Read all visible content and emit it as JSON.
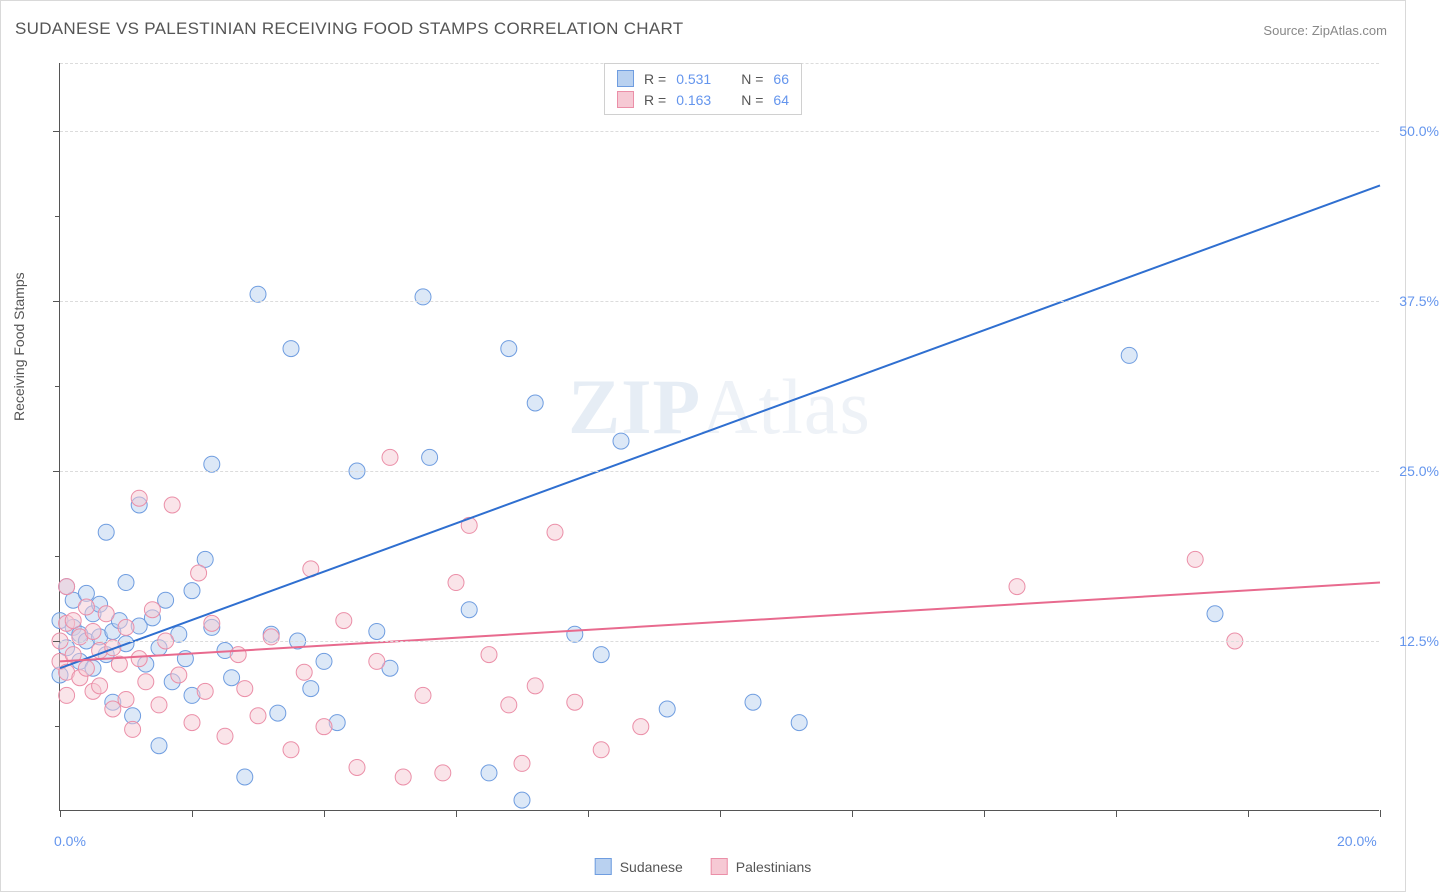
{
  "title": "SUDANESE VS PALESTINIAN RECEIVING FOOD STAMPS CORRELATION CHART",
  "source_label": "Source:",
  "source_value": "ZipAtlas.com",
  "ylabel": "Receiving Food Stamps",
  "watermark_zip": "ZIP",
  "watermark_atlas": "Atlas",
  "chart": {
    "type": "scatter",
    "background_color": "#ffffff",
    "grid_color": "#dcdcdc",
    "axis_color": "#555555",
    "tick_label_color": "#6495ed",
    "label_fontsize": 14,
    "title_fontsize": 17,
    "xlim": [
      0,
      20
    ],
    "ylim": [
      0,
      55
    ],
    "ytick_values": [
      12.5,
      25.0,
      37.5,
      50.0
    ],
    "ytick_labels": [
      "12.5%",
      "25.0%",
      "37.5%",
      "50.0%"
    ],
    "ytick_minor": [
      6.25,
      18.75,
      31.25,
      43.75
    ],
    "xtick_values": [
      0,
      2,
      4,
      6,
      8,
      10,
      12,
      14,
      16,
      18,
      20
    ],
    "xaxis_start_label": "0.0%",
    "xaxis_end_label": "20.0%",
    "marker_radius": 8,
    "marker_opacity": 0.5,
    "line_width": 2,
    "series": [
      {
        "name": "Sudanese",
        "color_fill": "#b9d1f0",
        "color_stroke": "#6f9de0",
        "line_color": "#2f6fd0",
        "R": "0.531",
        "N": "66",
        "regression": {
          "x1": 0,
          "y1": 10.5,
          "x2": 20,
          "y2": 46.0
        },
        "points": [
          [
            0.0,
            10.0
          ],
          [
            0.0,
            14.0
          ],
          [
            0.1,
            16.5
          ],
          [
            0.1,
            12.0
          ],
          [
            0.2,
            13.5
          ],
          [
            0.2,
            15.5
          ],
          [
            0.3,
            11.0
          ],
          [
            0.3,
            13.0
          ],
          [
            0.4,
            16.0
          ],
          [
            0.4,
            12.5
          ],
          [
            0.5,
            14.5
          ],
          [
            0.5,
            10.5
          ],
          [
            0.6,
            12.8
          ],
          [
            0.6,
            15.2
          ],
          [
            0.7,
            11.5
          ],
          [
            0.7,
            20.5
          ],
          [
            0.8,
            13.2
          ],
          [
            0.8,
            8.0
          ],
          [
            0.9,
            14.0
          ],
          [
            1.0,
            16.8
          ],
          [
            1.0,
            12.3
          ],
          [
            1.1,
            7.0
          ],
          [
            1.2,
            13.6
          ],
          [
            1.2,
            22.5
          ],
          [
            1.3,
            10.8
          ],
          [
            1.4,
            14.2
          ],
          [
            1.5,
            12.0
          ],
          [
            1.5,
            4.8
          ],
          [
            1.6,
            15.5
          ],
          [
            1.7,
            9.5
          ],
          [
            1.8,
            13.0
          ],
          [
            1.9,
            11.2
          ],
          [
            2.0,
            16.2
          ],
          [
            2.0,
            8.5
          ],
          [
            2.2,
            18.5
          ],
          [
            2.3,
            25.5
          ],
          [
            2.3,
            13.5
          ],
          [
            2.5,
            11.8
          ],
          [
            2.6,
            9.8
          ],
          [
            2.8,
            2.5
          ],
          [
            3.0,
            38.0
          ],
          [
            3.2,
            13.0
          ],
          [
            3.3,
            7.2
          ],
          [
            3.5,
            34.0
          ],
          [
            3.6,
            12.5
          ],
          [
            3.8,
            9.0
          ],
          [
            4.0,
            11.0
          ],
          [
            4.2,
            6.5
          ],
          [
            4.5,
            25.0
          ],
          [
            4.8,
            13.2
          ],
          [
            5.0,
            10.5
          ],
          [
            5.5,
            37.8
          ],
          [
            5.6,
            26.0
          ],
          [
            6.2,
            14.8
          ],
          [
            6.5,
            2.8
          ],
          [
            6.8,
            34.0
          ],
          [
            7.0,
            0.8
          ],
          [
            7.2,
            30.0
          ],
          [
            7.8,
            13.0
          ],
          [
            8.2,
            11.5
          ],
          [
            8.5,
            27.2
          ],
          [
            9.2,
            7.5
          ],
          [
            10.5,
            8.0
          ],
          [
            11.2,
            6.5
          ],
          [
            16.2,
            33.5
          ],
          [
            17.5,
            14.5
          ]
        ]
      },
      {
        "name": "Palestinians",
        "color_fill": "#f6c9d4",
        "color_stroke": "#eb8fa8",
        "line_color": "#e86a8e",
        "R": "0.163",
        "N": "64",
        "regression": {
          "x1": 0,
          "y1": 11.0,
          "x2": 20,
          "y2": 16.8
        },
        "points": [
          [
            0.0,
            11.0
          ],
          [
            0.0,
            12.5
          ],
          [
            0.1,
            10.2
          ],
          [
            0.1,
            13.8
          ],
          [
            0.1,
            16.5
          ],
          [
            0.1,
            8.5
          ],
          [
            0.2,
            11.5
          ],
          [
            0.2,
            14.0
          ],
          [
            0.3,
            9.8
          ],
          [
            0.3,
            12.8
          ],
          [
            0.4,
            10.5
          ],
          [
            0.4,
            15.0
          ],
          [
            0.5,
            8.8
          ],
          [
            0.5,
            13.2
          ],
          [
            0.6,
            11.8
          ],
          [
            0.6,
            9.2
          ],
          [
            0.7,
            14.5
          ],
          [
            0.8,
            7.5
          ],
          [
            0.8,
            12.0
          ],
          [
            0.9,
            10.8
          ],
          [
            1.0,
            8.2
          ],
          [
            1.0,
            13.5
          ],
          [
            1.1,
            6.0
          ],
          [
            1.2,
            11.2
          ],
          [
            1.2,
            23.0
          ],
          [
            1.3,
            9.5
          ],
          [
            1.4,
            14.8
          ],
          [
            1.5,
            7.8
          ],
          [
            1.6,
            12.5
          ],
          [
            1.7,
            22.5
          ],
          [
            1.8,
            10.0
          ],
          [
            2.0,
            6.5
          ],
          [
            2.1,
            17.5
          ],
          [
            2.2,
            8.8
          ],
          [
            2.3,
            13.8
          ],
          [
            2.5,
            5.5
          ],
          [
            2.7,
            11.5
          ],
          [
            2.8,
            9.0
          ],
          [
            3.0,
            7.0
          ],
          [
            3.2,
            12.8
          ],
          [
            3.5,
            4.5
          ],
          [
            3.7,
            10.2
          ],
          [
            3.8,
            17.8
          ],
          [
            4.0,
            6.2
          ],
          [
            4.3,
            14.0
          ],
          [
            4.5,
            3.2
          ],
          [
            4.8,
            11.0
          ],
          [
            5.0,
            26.0
          ],
          [
            5.2,
            2.5
          ],
          [
            5.5,
            8.5
          ],
          [
            5.8,
            2.8
          ],
          [
            6.0,
            16.8
          ],
          [
            6.2,
            21.0
          ],
          [
            6.5,
            11.5
          ],
          [
            6.8,
            7.8
          ],
          [
            7.0,
            3.5
          ],
          [
            7.2,
            9.2
          ],
          [
            7.5,
            20.5
          ],
          [
            7.8,
            8.0
          ],
          [
            8.2,
            4.5
          ],
          [
            8.8,
            6.2
          ],
          [
            14.5,
            16.5
          ],
          [
            17.2,
            18.5
          ],
          [
            17.8,
            12.5
          ]
        ]
      }
    ]
  },
  "legend_top": {
    "R_label": "R =",
    "N_label": "N ="
  },
  "legend_bottom": {
    "series1": "Sudanese",
    "series2": "Palestinians"
  }
}
